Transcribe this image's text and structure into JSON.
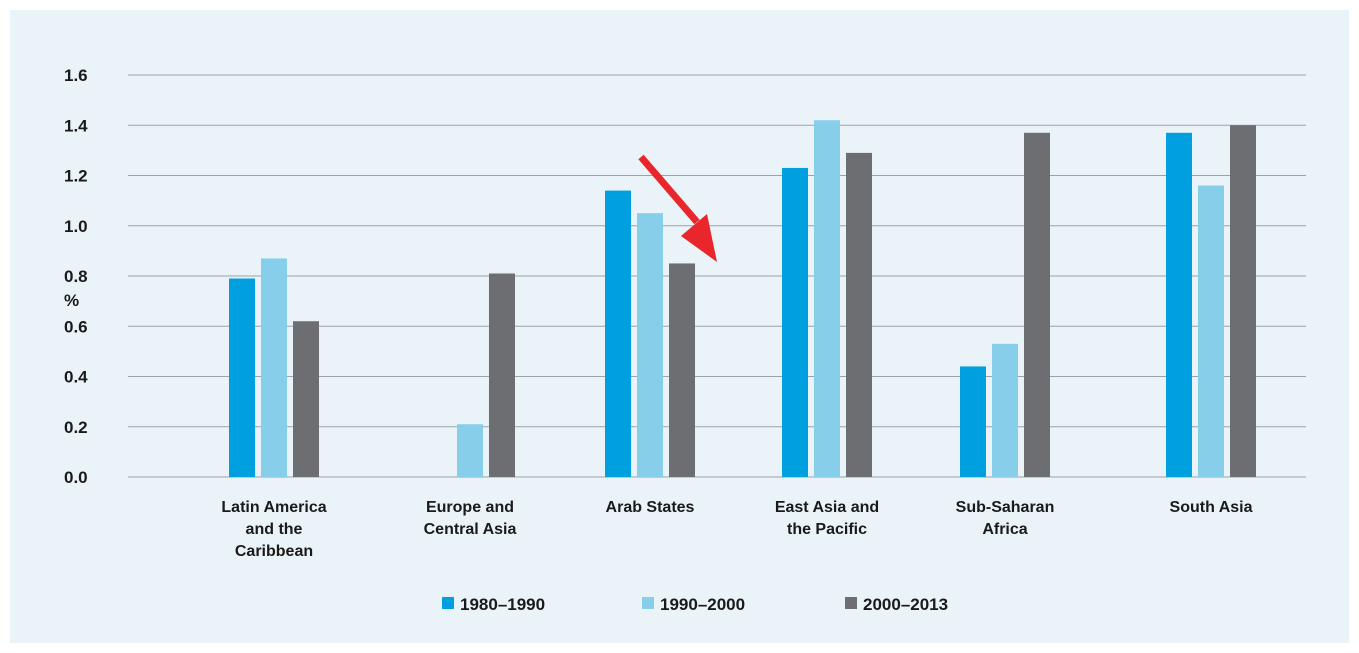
{
  "chart_data": {
    "type": "bar",
    "title": "",
    "xlabel": "",
    "ylabel": "%",
    "ylim": [
      0,
      1.6
    ],
    "yticks": [
      "0.0",
      "0.2",
      "0.4",
      "0.6",
      "0.8",
      "1.0",
      "1.2",
      "1.4",
      "1.6"
    ],
    "grid": true,
    "legend_position": "bottom",
    "categories": [
      [
        "Latin America",
        "and the",
        "Caribbean"
      ],
      [
        "Europe and",
        "Central Asia"
      ],
      [
        "Arab States"
      ],
      [
        "East Asia and",
        "the Pacific"
      ],
      [
        "Sub-Saharan",
        "Africa"
      ],
      [
        "South Asia"
      ]
    ],
    "series": [
      {
        "name": "1980–1990",
        "color": "#009fdf",
        "values": [
          0.79,
          null,
          1.14,
          1.23,
          0.44,
          1.37
        ]
      },
      {
        "name": "1990–2000",
        "color": "#87ceeb",
        "values": [
          0.87,
          0.21,
          1.05,
          1.42,
          0.53,
          1.16
        ]
      },
      {
        "name": "2000–2013",
        "color": "#6d6e71",
        "values": [
          0.62,
          0.81,
          0.85,
          1.29,
          1.37,
          1.4
        ]
      }
    ],
    "annotations": [
      {
        "type": "arrow",
        "color": "#e8262b",
        "points_to": "between Arab States and East Asia and the Pacific"
      }
    ]
  }
}
